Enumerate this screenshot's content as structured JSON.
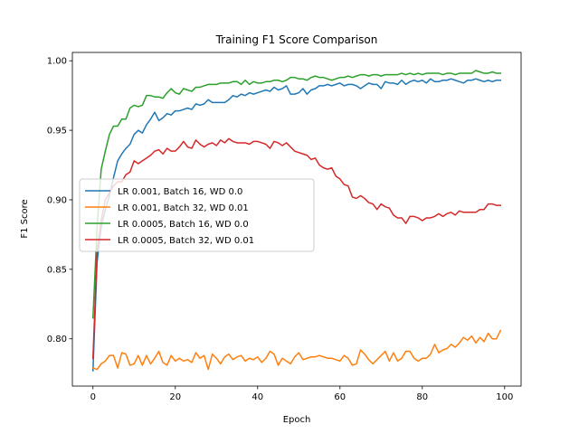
{
  "chart_data": {
    "type": "line",
    "title": "Training F1 Score Comparison",
    "xlabel": "Epoch",
    "ylabel": "F1 Score",
    "xlim": [
      -5,
      104
    ],
    "ylim": [
      0.766,
      1.006
    ],
    "xticks": [
      0,
      20,
      40,
      60,
      80,
      100
    ],
    "yticks": [
      0.8,
      0.85,
      0.9,
      0.95,
      1.0
    ],
    "xtick_labels": [
      "0",
      "20",
      "40",
      "60",
      "80",
      "100"
    ],
    "ytick_labels": [
      "0.80",
      "0.85",
      "0.90",
      "0.95",
      "1.00"
    ],
    "grid": false,
    "legend_position": "center-left",
    "series": [
      {
        "name": "LR 0.001, Batch 16, WD 0.0",
        "color": "#1f77b4",
        "values": [
          0.777,
          0.855,
          0.88,
          0.893,
          0.903,
          0.916,
          0.928,
          0.933,
          0.937,
          0.94,
          0.947,
          0.95,
          0.948,
          0.954,
          0.958,
          0.963,
          0.957,
          0.959,
          0.962,
          0.961,
          0.964,
          0.964,
          0.965,
          0.966,
          0.965,
          0.969,
          0.968,
          0.969,
          0.972,
          0.97,
          0.97,
          0.97,
          0.97,
          0.972,
          0.975,
          0.974,
          0.976,
          0.975,
          0.977,
          0.976,
          0.977,
          0.978,
          0.979,
          0.978,
          0.981,
          0.979,
          0.98,
          0.982,
          0.976,
          0.976,
          0.977,
          0.98,
          0.976,
          0.979,
          0.98,
          0.982,
          0.982,
          0.983,
          0.982,
          0.983,
          0.984,
          0.982,
          0.983,
          0.983,
          0.982,
          0.98,
          0.982,
          0.984,
          0.983,
          0.983,
          0.98,
          0.985,
          0.984,
          0.984,
          0.983,
          0.986,
          0.983,
          0.985,
          0.986,
          0.985,
          0.986,
          0.984,
          0.987,
          0.985,
          0.985,
          0.986,
          0.986,
          0.987,
          0.986,
          0.985,
          0.984,
          0.986,
          0.986,
          0.987,
          0.986,
          0.985,
          0.986,
          0.985,
          0.986,
          0.986
        ]
      },
      {
        "name": "LR 0.001, Batch 32, WD 0.01",
        "color": "#ff7f0e",
        "values": [
          0.779,
          0.778,
          0.782,
          0.784,
          0.788,
          0.788,
          0.779,
          0.79,
          0.789,
          0.781,
          0.782,
          0.788,
          0.781,
          0.788,
          0.782,
          0.786,
          0.791,
          0.783,
          0.781,
          0.788,
          0.784,
          0.786,
          0.784,
          0.785,
          0.783,
          0.79,
          0.786,
          0.788,
          0.778,
          0.789,
          0.786,
          0.782,
          0.787,
          0.789,
          0.785,
          0.787,
          0.788,
          0.784,
          0.786,
          0.785,
          0.787,
          0.783,
          0.786,
          0.791,
          0.789,
          0.781,
          0.786,
          0.784,
          0.782,
          0.787,
          0.79,
          0.785,
          0.786,
          0.787,
          0.787,
          0.788,
          0.787,
          0.786,
          0.786,
          0.785,
          0.784,
          0.788,
          0.786,
          0.781,
          0.782,
          0.792,
          0.789,
          0.785,
          0.782,
          0.785,
          0.788,
          0.791,
          0.784,
          0.79,
          0.784,
          0.786,
          0.791,
          0.791,
          0.786,
          0.784,
          0.786,
          0.786,
          0.789,
          0.796,
          0.79,
          0.792,
          0.793,
          0.796,
          0.794,
          0.797,
          0.801,
          0.799,
          0.802,
          0.797,
          0.801,
          0.798,
          0.804,
          0.8,
          0.8,
          0.806
        ]
      },
      {
        "name": "LR 0.0005, Batch 16, WD 0.0",
        "color": "#2ca02c",
        "values": [
          0.815,
          0.88,
          0.922,
          0.935,
          0.947,
          0.953,
          0.953,
          0.958,
          0.958,
          0.966,
          0.968,
          0.967,
          0.968,
          0.975,
          0.975,
          0.974,
          0.974,
          0.973,
          0.977,
          0.98,
          0.977,
          0.976,
          0.98,
          0.979,
          0.978,
          0.981,
          0.981,
          0.982,
          0.983,
          0.983,
          0.983,
          0.984,
          0.984,
          0.984,
          0.985,
          0.985,
          0.983,
          0.986,
          0.983,
          0.985,
          0.984,
          0.984,
          0.985,
          0.985,
          0.986,
          0.986,
          0.985,
          0.986,
          0.988,
          0.988,
          0.987,
          0.987,
          0.986,
          0.988,
          0.989,
          0.988,
          0.988,
          0.987,
          0.986,
          0.987,
          0.988,
          0.988,
          0.989,
          0.988,
          0.989,
          0.99,
          0.99,
          0.989,
          0.99,
          0.99,
          0.989,
          0.99,
          0.99,
          0.99,
          0.99,
          0.991,
          0.99,
          0.991,
          0.99,
          0.991,
          0.99,
          0.991,
          0.991,
          0.991,
          0.991,
          0.99,
          0.991,
          0.991,
          0.99,
          0.991,
          0.991,
          0.991,
          0.991,
          0.993,
          0.992,
          0.991,
          0.991,
          0.992,
          0.991,
          0.991
        ]
      },
      {
        "name": "LR 0.0005, Batch 32, WD 0.01",
        "color": "#d62728",
        "values": [
          0.786,
          0.863,
          0.885,
          0.9,
          0.905,
          0.91,
          0.913,
          0.913,
          0.918,
          0.92,
          0.928,
          0.926,
          0.928,
          0.93,
          0.932,
          0.935,
          0.936,
          0.933,
          0.937,
          0.935,
          0.935,
          0.938,
          0.942,
          0.938,
          0.937,
          0.943,
          0.94,
          0.938,
          0.94,
          0.941,
          0.939,
          0.943,
          0.941,
          0.944,
          0.942,
          0.941,
          0.941,
          0.941,
          0.94,
          0.942,
          0.942,
          0.941,
          0.94,
          0.937,
          0.942,
          0.941,
          0.939,
          0.941,
          0.938,
          0.935,
          0.934,
          0.933,
          0.932,
          0.929,
          0.93,
          0.925,
          0.923,
          0.922,
          0.923,
          0.917,
          0.915,
          0.911,
          0.91,
          0.902,
          0.901,
          0.903,
          0.901,
          0.898,
          0.897,
          0.893,
          0.897,
          0.895,
          0.894,
          0.889,
          0.887,
          0.887,
          0.883,
          0.888,
          0.888,
          0.887,
          0.885,
          0.887,
          0.887,
          0.888,
          0.89,
          0.888,
          0.89,
          0.891,
          0.889,
          0.892,
          0.891,
          0.891,
          0.891,
          0.891,
          0.893,
          0.893,
          0.897,
          0.897,
          0.896,
          0.896
        ]
      }
    ]
  }
}
